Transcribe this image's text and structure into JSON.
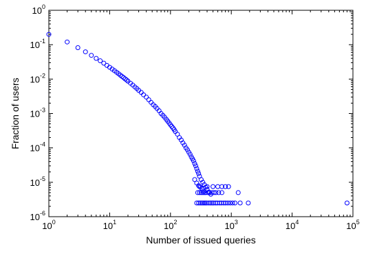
{
  "chart_data": {
    "type": "scatter",
    "title": "",
    "xlabel": "Number of issued queries",
    "ylabel": "Fraction of users",
    "xscale": "log",
    "yscale": "log",
    "xlim": [
      1,
      100000
    ],
    "ylim": [
      1e-06,
      1
    ],
    "grid": false,
    "legend": "none",
    "marker": "circle-open",
    "color": "#0000ff",
    "x_ticks": [
      {
        "base": "10",
        "exp": "0",
        "value": 1
      },
      {
        "base": "10",
        "exp": "1",
        "value": 10
      },
      {
        "base": "10",
        "exp": "2",
        "value": 100
      },
      {
        "base": "10",
        "exp": "3",
        "value": 1000
      },
      {
        "base": "10",
        "exp": "4",
        "value": 10000
      },
      {
        "base": "10",
        "exp": "5",
        "value": 100000
      }
    ],
    "y_ticks": [
      {
        "base": "10",
        "exp": "-6",
        "value": 1e-06
      },
      {
        "base": "10",
        "exp": "-5",
        "value": 1e-05
      },
      {
        "base": "10",
        "exp": "-4",
        "value": 0.0001
      },
      {
        "base": "10",
        "exp": "-3",
        "value": 0.001
      },
      {
        "base": "10",
        "exp": "-2",
        "value": 0.01
      },
      {
        "base": "10",
        "exp": "-1",
        "value": 0.1
      },
      {
        "base": "10",
        "exp": "0",
        "value": 1
      }
    ],
    "points": [
      [
        1,
        0.2
      ],
      [
        2,
        0.12
      ],
      [
        3,
        0.082
      ],
      [
        4,
        0.062
      ],
      [
        5,
        0.049
      ],
      [
        6,
        0.04
      ],
      [
        7,
        0.034
      ],
      [
        8,
        0.029
      ],
      [
        9,
        0.025
      ],
      [
        10,
        0.022
      ],
      [
        11,
        0.0195
      ],
      [
        12,
        0.0175
      ],
      [
        13,
        0.0158
      ],
      [
        14,
        0.0143
      ],
      [
        15,
        0.013
      ],
      [
        16,
        0.0119
      ],
      [
        17,
        0.011
      ],
      [
        18,
        0.0101
      ],
      [
        19,
        0.0094
      ],
      [
        20,
        0.0087
      ],
      [
        22,
        0.0076
      ],
      [
        24,
        0.0067
      ],
      [
        26,
        0.0059
      ],
      [
        28,
        0.0053
      ],
      [
        30,
        0.0047
      ],
      [
        33,
        0.0041
      ],
      [
        36,
        0.0035
      ],
      [
        40,
        0.003
      ],
      [
        44,
        0.0025
      ],
      [
        48,
        0.0021
      ],
      [
        52,
        0.0018
      ],
      [
        56,
        0.0016
      ],
      [
        60,
        0.0014
      ],
      [
        65,
        0.0012
      ],
      [
        70,
        0.001
      ],
      [
        75,
        0.00088
      ],
      [
        80,
        0.00078
      ],
      [
        85,
        0.00068
      ],
      [
        90,
        0.0006
      ],
      [
        95,
        0.00053
      ],
      [
        100,
        0.00047
      ],
      [
        105,
        0.00042
      ],
      [
        110,
        0.00038
      ],
      [
        115,
        0.00034
      ],
      [
        120,
        0.0003
      ],
      [
        130,
        0.00025
      ],
      [
        140,
        0.0002
      ],
      [
        150,
        0.00017
      ],
      [
        160,
        0.00014
      ],
      [
        170,
        0.00012
      ],
      [
        180,
        0.0001
      ],
      [
        190,
        8.8e-05
      ],
      [
        200,
        7.5e-05
      ],
      [
        210,
        6.5e-05
      ],
      [
        220,
        5.5e-05
      ],
      [
        230,
        4.8e-05
      ],
      [
        240,
        4.2e-05
      ],
      [
        250,
        3.5e-05
      ],
      [
        260,
        3e-05
      ],
      [
        270,
        2.5e-05
      ],
      [
        280,
        2.1e-05
      ],
      [
        290,
        1.8e-05
      ],
      [
        300,
        1.5e-05
      ],
      [
        320,
        1.2e-05
      ],
      [
        340,
        1e-05
      ],
      [
        360,
        8.5e-06
      ],
      [
        380,
        7.2e-06
      ],
      [
        400,
        6.2e-06
      ],
      [
        430,
        5.2e-06
      ],
      [
        460,
        4.5e-06
      ],
      [
        250,
        1.2e-05
      ],
      [
        270,
        9.5e-06
      ],
      [
        290,
        8e-06
      ],
      [
        310,
        7.2e-06
      ],
      [
        330,
        6.5e-06
      ],
      [
        350,
        5.5e-06
      ],
      [
        280,
        5e-06
      ],
      [
        300,
        5e-06
      ],
      [
        320,
        5e-06
      ],
      [
        340,
        5e-06
      ],
      [
        360,
        5e-06
      ],
      [
        380,
        5e-06
      ],
      [
        410,
        5e-06
      ],
      [
        440,
        5e-06
      ],
      [
        480,
        5e-06
      ],
      [
        520,
        5e-06
      ],
      [
        560,
        5e-06
      ],
      [
        620,
        5e-06
      ],
      [
        700,
        5e-06
      ],
      [
        300,
        7.5e-06
      ],
      [
        400,
        7.5e-06
      ],
      [
        500,
        7.5e-06
      ],
      [
        600,
        7.5e-06
      ],
      [
        700,
        7.5e-06
      ],
      [
        800,
        7.5e-06
      ],
      [
        900,
        7.5e-06
      ],
      [
        270,
        2.5e-06
      ],
      [
        290,
        2.5e-06
      ],
      [
        310,
        2.5e-06
      ],
      [
        330,
        2.5e-06
      ],
      [
        350,
        2.5e-06
      ],
      [
        370,
        2.5e-06
      ],
      [
        390,
        2.5e-06
      ],
      [
        420,
        2.5e-06
      ],
      [
        450,
        2.5e-06
      ],
      [
        480,
        2.5e-06
      ],
      [
        510,
        2.5e-06
      ],
      [
        550,
        2.5e-06
      ],
      [
        590,
        2.5e-06
      ],
      [
        640,
        2.5e-06
      ],
      [
        690,
        2.5e-06
      ],
      [
        750,
        2.5e-06
      ],
      [
        810,
        2.5e-06
      ],
      [
        880,
        2.5e-06
      ],
      [
        960,
        2.5e-06
      ],
      [
        1050,
        2.5e-06
      ],
      [
        1150,
        2.5e-06
      ],
      [
        1400,
        2.5e-06
      ],
      [
        1900,
        2.5e-06
      ],
      [
        1300,
        5e-06
      ],
      [
        80000,
        2.5e-06
      ]
    ]
  }
}
